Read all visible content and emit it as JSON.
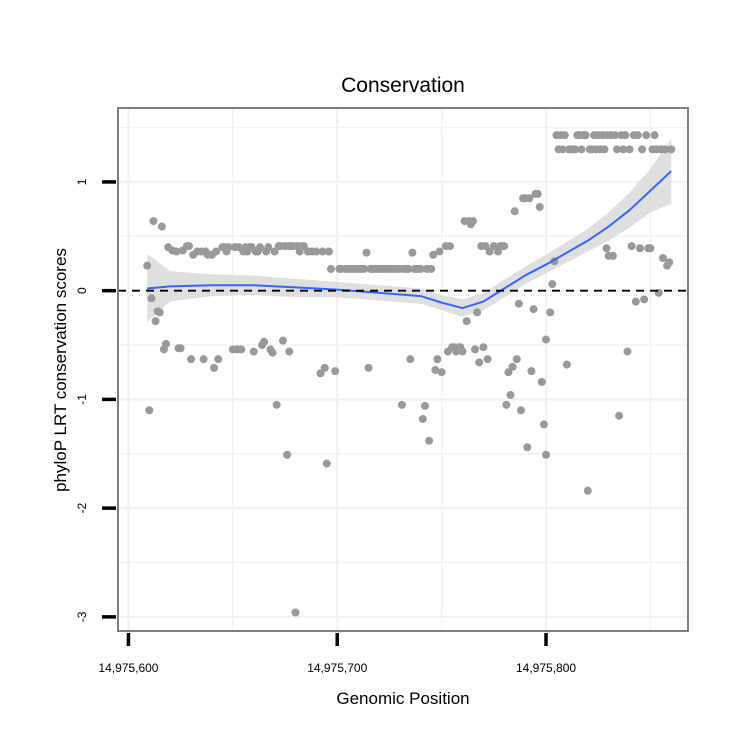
{
  "chart_data": {
    "type": "scatter",
    "title": "Conservation",
    "xlabel": "Genomic Position",
    "ylabel": "phyloP LRT conservation scores",
    "xlim": [
      14975595,
      14975868
    ],
    "ylim": [
      -3.13,
      1.68
    ],
    "x_ticks": [
      {
        "value": 14975600,
        "label": "14,975,600"
      },
      {
        "value": 14975700,
        "label": "14,975,700"
      },
      {
        "value": 14975800,
        "label": "14,975,800"
      }
    ],
    "y_ticks": [
      {
        "value": -3,
        "label": "-3"
      },
      {
        "value": -2,
        "label": "-2"
      },
      {
        "value": -1,
        "label": "-1"
      },
      {
        "value": 0,
        "label": "0"
      },
      {
        "value": 1,
        "label": "1"
      }
    ],
    "reference_line": {
      "y": 0,
      "style": "dashed"
    },
    "grid": true,
    "points": [
      [
        14975609,
        0.23
      ],
      [
        14975610,
        -1.1
      ],
      [
        14975611,
        -0.07
      ],
      [
        14975612,
        0.64
      ],
      [
        14975613,
        -0.28
      ],
      [
        14975614,
        -0.19
      ],
      [
        14975615,
        -0.2
      ],
      [
        14975616,
        0.59
      ],
      [
        14975617,
        -0.54
      ],
      [
        14975618,
        -0.49
      ],
      [
        14975619,
        0.4
      ],
      [
        14975621,
        0.37
      ],
      [
        14975623,
        0.36
      ],
      [
        14975624,
        -0.53
      ],
      [
        14975625,
        -0.53
      ],
      [
        14975626,
        0.37
      ],
      [
        14975628,
        0.41
      ],
      [
        14975629,
        0.41
      ],
      [
        14975630,
        -0.63
      ],
      [
        14975631,
        0.33
      ],
      [
        14975633,
        0.36
      ],
      [
        14975635,
        0.36
      ],
      [
        14975636,
        -0.63
      ],
      [
        14975637,
        0.36
      ],
      [
        14975638,
        0.33
      ],
      [
        14975640,
        0.33
      ],
      [
        14975641,
        -0.71
      ],
      [
        14975642,
        0.36
      ],
      [
        14975643,
        -0.63
      ],
      [
        14975645,
        0.4
      ],
      [
        14975646,
        0.4
      ],
      [
        14975647,
        0.36
      ],
      [
        14975648,
        0.4
      ],
      [
        14975650,
        -0.54
      ],
      [
        14975651,
        0.4
      ],
      [
        14975652,
        -0.54
      ],
      [
        14975653,
        0.4
      ],
      [
        14975654,
        -0.54
      ],
      [
        14975655,
        0.36
      ],
      [
        14975656,
        0.4
      ],
      [
        14975657,
        0.36
      ],
      [
        14975658,
        0.4
      ],
      [
        14975659,
        0.4
      ],
      [
        14975660,
        -0.56
      ],
      [
        14975661,
        0.36
      ],
      [
        14975662,
        0.36
      ],
      [
        14975663,
        0.4
      ],
      [
        14975664,
        -0.5
      ],
      [
        14975665,
        -0.47
      ],
      [
        14975666,
        0.36
      ],
      [
        14975667,
        0.4
      ],
      [
        14975668,
        -0.54
      ],
      [
        14975669,
        -0.57
      ],
      [
        14975670,
        0.36
      ],
      [
        14975671,
        -1.05
      ],
      [
        14975672,
        0.41
      ],
      [
        14975673,
        0.41
      ],
      [
        14975674,
        -0.46
      ],
      [
        14975675,
        0.41
      ],
      [
        14975676,
        -1.51
      ],
      [
        14975677,
        0.41
      ],
      [
        14975677,
        -0.56
      ],
      [
        14975678,
        0.41
      ],
      [
        14975679,
        0.41
      ],
      [
        14975680,
        -2.96
      ],
      [
        14975681,
        0.41
      ],
      [
        14975682,
        0.36
      ],
      [
        14975683,
        0.41
      ],
      [
        14975684,
        0.41
      ],
      [
        14975686,
        0.36
      ],
      [
        14975688,
        0.36
      ],
      [
        14975690,
        0.36
      ],
      [
        14975692,
        -0.76
      ],
      [
        14975693,
        0.36
      ],
      [
        14975694,
        -0.71
      ],
      [
        14975695,
        -1.59
      ],
      [
        14975696,
        0.36
      ],
      [
        14975697,
        0.2
      ],
      [
        14975699,
        -0.74
      ],
      [
        14975701,
        0.2
      ],
      [
        14975702,
        0.2
      ],
      [
        14975704,
        0.2
      ],
      [
        14975705,
        0.2
      ],
      [
        14975706,
        0.2
      ],
      [
        14975707,
        0.2
      ],
      [
        14975708,
        0.2
      ],
      [
        14975709,
        0.2
      ],
      [
        14975710,
        0.2
      ],
      [
        14975711,
        0.2
      ],
      [
        14975712,
        0.2
      ],
      [
        14975713,
        0.2
      ],
      [
        14975714,
        0.35
      ],
      [
        14975715,
        -0.71
      ],
      [
        14975716,
        0.2
      ],
      [
        14975717,
        0.2
      ],
      [
        14975718,
        0.2
      ],
      [
        14975719,
        0.2
      ],
      [
        14975720,
        0.2
      ],
      [
        14975721,
        0.2
      ],
      [
        14975722,
        0.2
      ],
      [
        14975723,
        0.2
      ],
      [
        14975724,
        0.2
      ],
      [
        14975725,
        0.2
      ],
      [
        14975726,
        0.2
      ],
      [
        14975727,
        0.2
      ],
      [
        14975728,
        0.2
      ],
      [
        14975729,
        0.2
      ],
      [
        14975730,
        0.2
      ],
      [
        14975731,
        -1.05
      ],
      [
        14975732,
        0.2
      ],
      [
        14975733,
        0.2
      ],
      [
        14975734,
        0.2
      ],
      [
        14975735,
        -0.63
      ],
      [
        14975736,
        0.35
      ],
      [
        14975737,
        0.2
      ],
      [
        14975738,
        0.2
      ],
      [
        14975739,
        0.2
      ],
      [
        14975740,
        0.2
      ],
      [
        14975741,
        -1.18
      ],
      [
        14975742,
        -1.06
      ],
      [
        14975743,
        0.2
      ],
      [
        14975744,
        -1.38
      ],
      [
        14975745,
        0.2
      ],
      [
        14975746,
        0.33
      ],
      [
        14975747,
        -0.73
      ],
      [
        14975748,
        -0.63
      ],
      [
        14975749,
        0.36
      ],
      [
        14975750,
        -0.75
      ],
      [
        14975752,
        0.41
      ],
      [
        14975753,
        -0.56
      ],
      [
        14975754,
        0.41
      ],
      [
        14975755,
        -0.52
      ],
      [
        14975756,
        -0.52
      ],
      [
        14975757,
        -0.56
      ],
      [
        14975758,
        -0.52
      ],
      [
        14975759,
        -0.52
      ],
      [
        14975760,
        -0.56
      ],
      [
        14975761,
        0.64
      ],
      [
        14975762,
        -0.28
      ],
      [
        14975763,
        0.64
      ],
      [
        14975764,
        0.61
      ],
      [
        14975765,
        0.64
      ],
      [
        14975766,
        -0.54
      ],
      [
        14975767,
        -0.2
      ],
      [
        14975768,
        -0.66
      ],
      [
        14975769,
        0.41
      ],
      [
        14975770,
        -0.52
      ],
      [
        14975771,
        0.41
      ],
      [
        14975772,
        -0.63
      ],
      [
        14975773,
        0.36
      ],
      [
        14975775,
        0.41
      ],
      [
        14975777,
        0.36
      ],
      [
        14975778,
        0.41
      ],
      [
        14975779,
        0.41
      ],
      [
        14975780,
        0.41
      ],
      [
        14975781,
        -1.05
      ],
      [
        14975782,
        -0.75
      ],
      [
        14975783,
        -0.96
      ],
      [
        14975784,
        -0.7
      ],
      [
        14975785,
        0.73
      ],
      [
        14975786,
        -0.63
      ],
      [
        14975787,
        -0.12
      ],
      [
        14975788,
        -1.1
      ],
      [
        14975789,
        0.85
      ],
      [
        14975790,
        0.85
      ],
      [
        14975791,
        -1.44
      ],
      [
        14975792,
        0.85
      ],
      [
        14975793,
        -0.74
      ],
      [
        14975794,
        -0.17
      ],
      [
        14975795,
        0.89
      ],
      [
        14975796,
        0.89
      ],
      [
        14975797,
        0.77
      ],
      [
        14975798,
        -0.84
      ],
      [
        14975799,
        -1.23
      ],
      [
        14975800,
        -1.51
      ],
      [
        14975800,
        -0.45
      ],
      [
        14975802,
        -0.2
      ],
      [
        14975803,
        0.06
      ],
      [
        14975804,
        0.27
      ],
      [
        14975805,
        1.43
      ],
      [
        14975806,
        1.3
      ],
      [
        14975807,
        1.43
      ],
      [
        14975808,
        1.3
      ],
      [
        14975809,
        1.43
      ],
      [
        14975810,
        -0.68
      ],
      [
        14975811,
        1.3
      ],
      [
        14975812,
        1.3
      ],
      [
        14975813,
        1.3
      ],
      [
        14975814,
        1.3
      ],
      [
        14975815,
        1.43
      ],
      [
        14975816,
        1.43
      ],
      [
        14975817,
        1.3
      ],
      [
        14975818,
        1.43
      ],
      [
        14975819,
        1.43
      ],
      [
        14975820,
        -1.84
      ],
      [
        14975821,
        1.3
      ],
      [
        14975822,
        1.3
      ],
      [
        14975823,
        1.43
      ],
      [
        14975824,
        1.3
      ],
      [
        14975825,
        1.43
      ],
      [
        14975826,
        1.3
      ],
      [
        14975827,
        1.43
      ],
      [
        14975828,
        1.3
      ],
      [
        14975829,
        0.39
      ],
      [
        14975829,
        1.43
      ],
      [
        14975830,
        0.32
      ],
      [
        14975831,
        1.43
      ],
      [
        14975832,
        0.32
      ],
      [
        14975833,
        1.43
      ],
      [
        14975834,
        1.3
      ],
      [
        14975835,
        -1.15
      ],
      [
        14975836,
        1.43
      ],
      [
        14975837,
        1.3
      ],
      [
        14975838,
        1.43
      ],
      [
        14975839,
        -0.56
      ],
      [
        14975840,
        1.3
      ],
      [
        14975841,
        0.41
      ],
      [
        14975842,
        1.43
      ],
      [
        14975843,
        -0.1
      ],
      [
        14975844,
        1.43
      ],
      [
        14975845,
        0.39
      ],
      [
        14975846,
        1.3
      ],
      [
        14975847,
        -0.08
      ],
      [
        14975848,
        1.43
      ],
      [
        14975849,
        0.39
      ],
      [
        14975850,
        0.39
      ],
      [
        14975851,
        1.3
      ],
      [
        14975852,
        1.43
      ],
      [
        14975853,
        1.3
      ],
      [
        14975854,
        -0.02
      ],
      [
        14975855,
        1.3
      ],
      [
        14975856,
        0.3
      ],
      [
        14975857,
        1.3
      ],
      [
        14975858,
        0.23
      ],
      [
        14975859,
        0.26
      ],
      [
        14975860,
        1.3
      ]
    ],
    "smooth": {
      "method": "loess",
      "line_color": "#3366FF",
      "band_color": "#D9D9D9",
      "fit": [
        [
          14975609,
          0.02
        ],
        [
          14975620,
          0.04
        ],
        [
          14975640,
          0.05
        ],
        [
          14975660,
          0.05
        ],
        [
          14975680,
          0.03
        ],
        [
          14975700,
          0.01
        ],
        [
          14975720,
          -0.02
        ],
        [
          14975740,
          -0.05
        ],
        [
          14975750,
          -0.11
        ],
        [
          14975760,
          -0.16
        ],
        [
          14975770,
          -0.1
        ],
        [
          14975780,
          0.02
        ],
        [
          14975790,
          0.14
        ],
        [
          14975800,
          0.24
        ],
        [
          14975810,
          0.35
        ],
        [
          14975820,
          0.46
        ],
        [
          14975830,
          0.59
        ],
        [
          14975840,
          0.74
        ],
        [
          14975850,
          0.92
        ],
        [
          14975860,
          1.1
        ]
      ],
      "band": [
        [
          14975609,
          -0.29,
          0.34
        ],
        [
          14975620,
          -0.1,
          0.18
        ],
        [
          14975640,
          -0.05,
          0.15
        ],
        [
          14975660,
          -0.04,
          0.14
        ],
        [
          14975680,
          -0.06,
          0.11
        ],
        [
          14975700,
          -0.06,
          0.08
        ],
        [
          14975720,
          -0.09,
          0.05
        ],
        [
          14975740,
          -0.12,
          0.02
        ],
        [
          14975750,
          -0.18,
          -0.04
        ],
        [
          14975760,
          -0.24,
          -0.08
        ],
        [
          14975770,
          -0.18,
          -0.02
        ],
        [
          14975780,
          -0.06,
          0.1
        ],
        [
          14975790,
          0.06,
          0.22
        ],
        [
          14975800,
          0.16,
          0.33
        ],
        [
          14975810,
          0.26,
          0.45
        ],
        [
          14975820,
          0.36,
          0.57
        ],
        [
          14975830,
          0.46,
          0.72
        ],
        [
          14975840,
          0.58,
          0.9
        ],
        [
          14975850,
          0.72,
          1.12
        ],
        [
          14975860,
          0.8,
          1.4
        ]
      ]
    },
    "colors": {
      "points": "#999999",
      "panel_border": "#7F7F7F",
      "grid": "#F2F2F2",
      "ref_line": "#000000"
    }
  }
}
